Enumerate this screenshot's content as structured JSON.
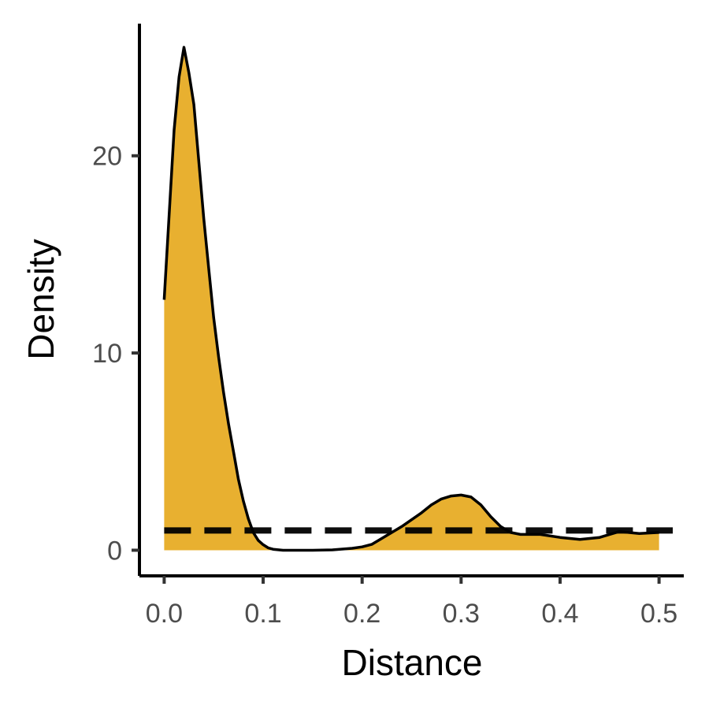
{
  "chart_data": {
    "type": "area",
    "xlabel": "Distance",
    "ylabel": "Density",
    "xlim": [
      -0.025,
      0.525
    ],
    "ylim": [
      -1.3,
      26.7
    ],
    "x_ticks": [
      0.0,
      0.1,
      0.2,
      0.3,
      0.4,
      0.5
    ],
    "x_tick_labels": [
      "0.0",
      "0.1",
      "0.2",
      "0.3",
      "0.4",
      "0.5"
    ],
    "y_ticks": [
      0,
      10,
      20
    ],
    "y_tick_labels": [
      "0",
      "10",
      "20"
    ],
    "grid": false,
    "legend": "none",
    "series": [
      {
        "x": [
          0.0,
          0.005,
          0.01,
          0.015,
          0.02,
          0.025,
          0.03,
          0.035,
          0.04,
          0.045,
          0.05,
          0.055,
          0.06,
          0.065,
          0.07,
          0.075,
          0.08,
          0.085,
          0.09,
          0.095,
          0.1,
          0.105,
          0.11,
          0.12,
          0.13,
          0.15,
          0.17,
          0.19,
          0.2,
          0.21,
          0.22,
          0.24,
          0.26,
          0.27,
          0.28,
          0.29,
          0.3,
          0.31,
          0.32,
          0.33,
          0.34,
          0.35,
          0.36,
          0.38,
          0.4,
          0.42,
          0.44,
          0.46,
          0.48,
          0.5
        ],
        "y": [
          12.7,
          17.0,
          21.3,
          24.0,
          25.5,
          24.2,
          22.6,
          19.7,
          16.8,
          14.3,
          11.8,
          9.8,
          8.0,
          6.4,
          5.0,
          3.6,
          2.5,
          1.6,
          0.9,
          0.5,
          0.28,
          0.12,
          0.05,
          0.0,
          0.0,
          0.0,
          0.02,
          0.1,
          0.17,
          0.3,
          0.6,
          1.2,
          1.9,
          2.3,
          2.6,
          2.75,
          2.8,
          2.7,
          2.3,
          1.7,
          1.2,
          0.9,
          0.8,
          0.8,
          0.65,
          0.55,
          0.65,
          0.95,
          0.85,
          0.9
        ]
      }
    ],
    "reference_line": {
      "y": 1.0,
      "style": "dashed"
    },
    "fill_color": "#e8b030",
    "line_color": "#000000"
  }
}
